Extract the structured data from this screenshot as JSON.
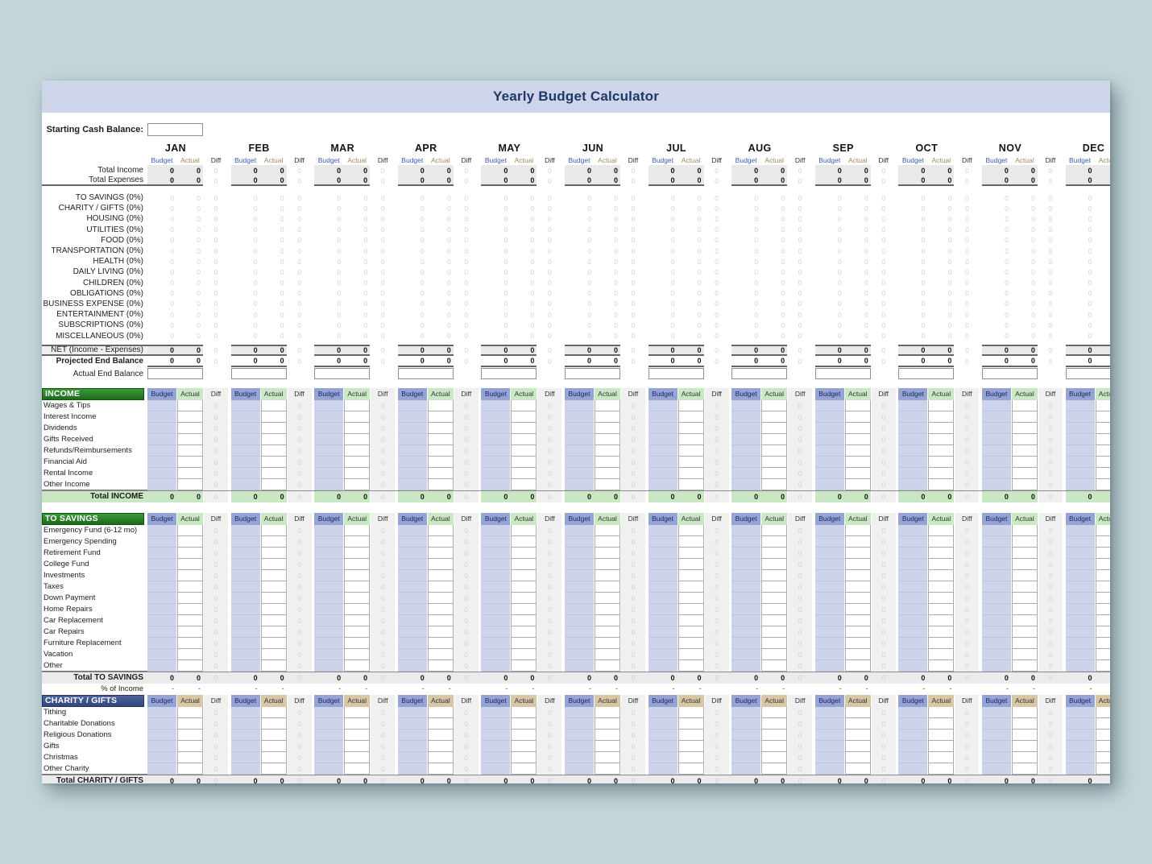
{
  "title": "Yearly Budget Calculator",
  "starting_cash": {
    "label": "Starting Cash Balance:",
    "value": ""
  },
  "months": [
    "JAN",
    "FEB",
    "MAR",
    "APR",
    "MAY",
    "JUN",
    "JUL",
    "AUG",
    "SEP",
    "OCT",
    "NOV",
    "DEC"
  ],
  "column_headers": {
    "budget": "Budget",
    "actual": "Actual",
    "diff": "Diff"
  },
  "summary": {
    "rows": [
      {
        "label": "Total Income",
        "budget": "0",
        "actual": "0",
        "diff": "0"
      },
      {
        "label": "Total Expenses",
        "budget": "0",
        "actual": "0",
        "diff": "0"
      }
    ],
    "expense_categories": [
      "TO SAVINGS (0%)",
      "CHARITY / GIFTS (0%)",
      "HOUSING (0%)",
      "UTILITIES (0%)",
      "FOOD (0%)",
      "TRANSPORTATION (0%)",
      "HEALTH (0%)",
      "DAILY LIVING (0%)",
      "CHILDREN (0%)",
      "OBLIGATIONS (0%)",
      "BUSINESS EXPENSE (0%)",
      "ENTERTAINMENT (0%)",
      "SUBSCRIPTIONS (0%)",
      "MISCELLANEOUS (0%)"
    ],
    "category_cell_value": "0",
    "net": {
      "label": "NET (Income - Expenses)",
      "budget": "0",
      "actual": "0",
      "diff": "0"
    },
    "projected": {
      "label": "Projected End Balance",
      "budget": "0",
      "actual": "0",
      "diff": "0"
    },
    "actual_end": {
      "label": "Actual End Balance",
      "value": ""
    }
  },
  "sections": [
    {
      "id": "income",
      "title": "INCOME",
      "theme": "green",
      "actual_header": "green",
      "rows": [
        "Wages & Tips",
        "Interest Income",
        "Dividends",
        "Gifts Received",
        "Refunds/Reimbursements",
        "Financial Aid",
        "Rental Income",
        "Other Income"
      ],
      "row_diff_value": "0",
      "total": {
        "label": "Total INCOME",
        "budget": "0",
        "actual": "0",
        "diff": "0",
        "style": "green"
      }
    },
    {
      "id": "to-savings",
      "title": "TO SAVINGS",
      "theme": "green",
      "actual_header": "green",
      "rows": [
        "Emergency Fund (6-12 mo)",
        "Emergency Spending",
        "Retirement Fund",
        "College Fund",
        "Investments",
        "Taxes",
        "Down Payment",
        "Home Repairs",
        "Car Replacement",
        "Car Repairs",
        "Furniture Replacement",
        "Vacation",
        "Other"
      ],
      "row_diff_value": "0",
      "total": {
        "label": "Total TO SAVINGS",
        "budget": "0",
        "actual": "0",
        "diff": "0",
        "style": "gray"
      },
      "percent": {
        "label": "% of Income",
        "budget": "-",
        "actual": "-"
      }
    },
    {
      "id": "charity-gifts",
      "title": "CHARITY / GIFTS",
      "theme": "navy",
      "actual_header": "tan",
      "rows": [
        "Tithing",
        "Charitable Donations",
        "Religious Donations",
        "Gifts",
        "Christmas",
        "Other Charity"
      ],
      "row_diff_value": "0",
      "total": {
        "label": "Total CHARITY / GIFTS",
        "budget": "0",
        "actual": "0",
        "diff": "0",
        "style": "gray"
      }
    }
  ],
  "colors": {
    "page_bg": "#c3d6da",
    "title_bar_bg": "#ced4e9",
    "title_text": "#1f3864",
    "green_section_header": "#2a7e2a",
    "navy_section_header": "#3f5590",
    "budget_header_bg": "#95a3d5",
    "actual_header_green_bg": "#c9e9c4",
    "actual_header_tan_bg": "#d8c7a5",
    "budget_entry_cell_bg": "#ccd3ea",
    "total_green_row_bg": "#c9e7c2",
    "total_gray_row_bg": "#ebebeb",
    "summary_cell_bg": "#e9e9e9",
    "budget_label_text": "#3b5cb8",
    "actual_label_text": "#a08a5f"
  }
}
